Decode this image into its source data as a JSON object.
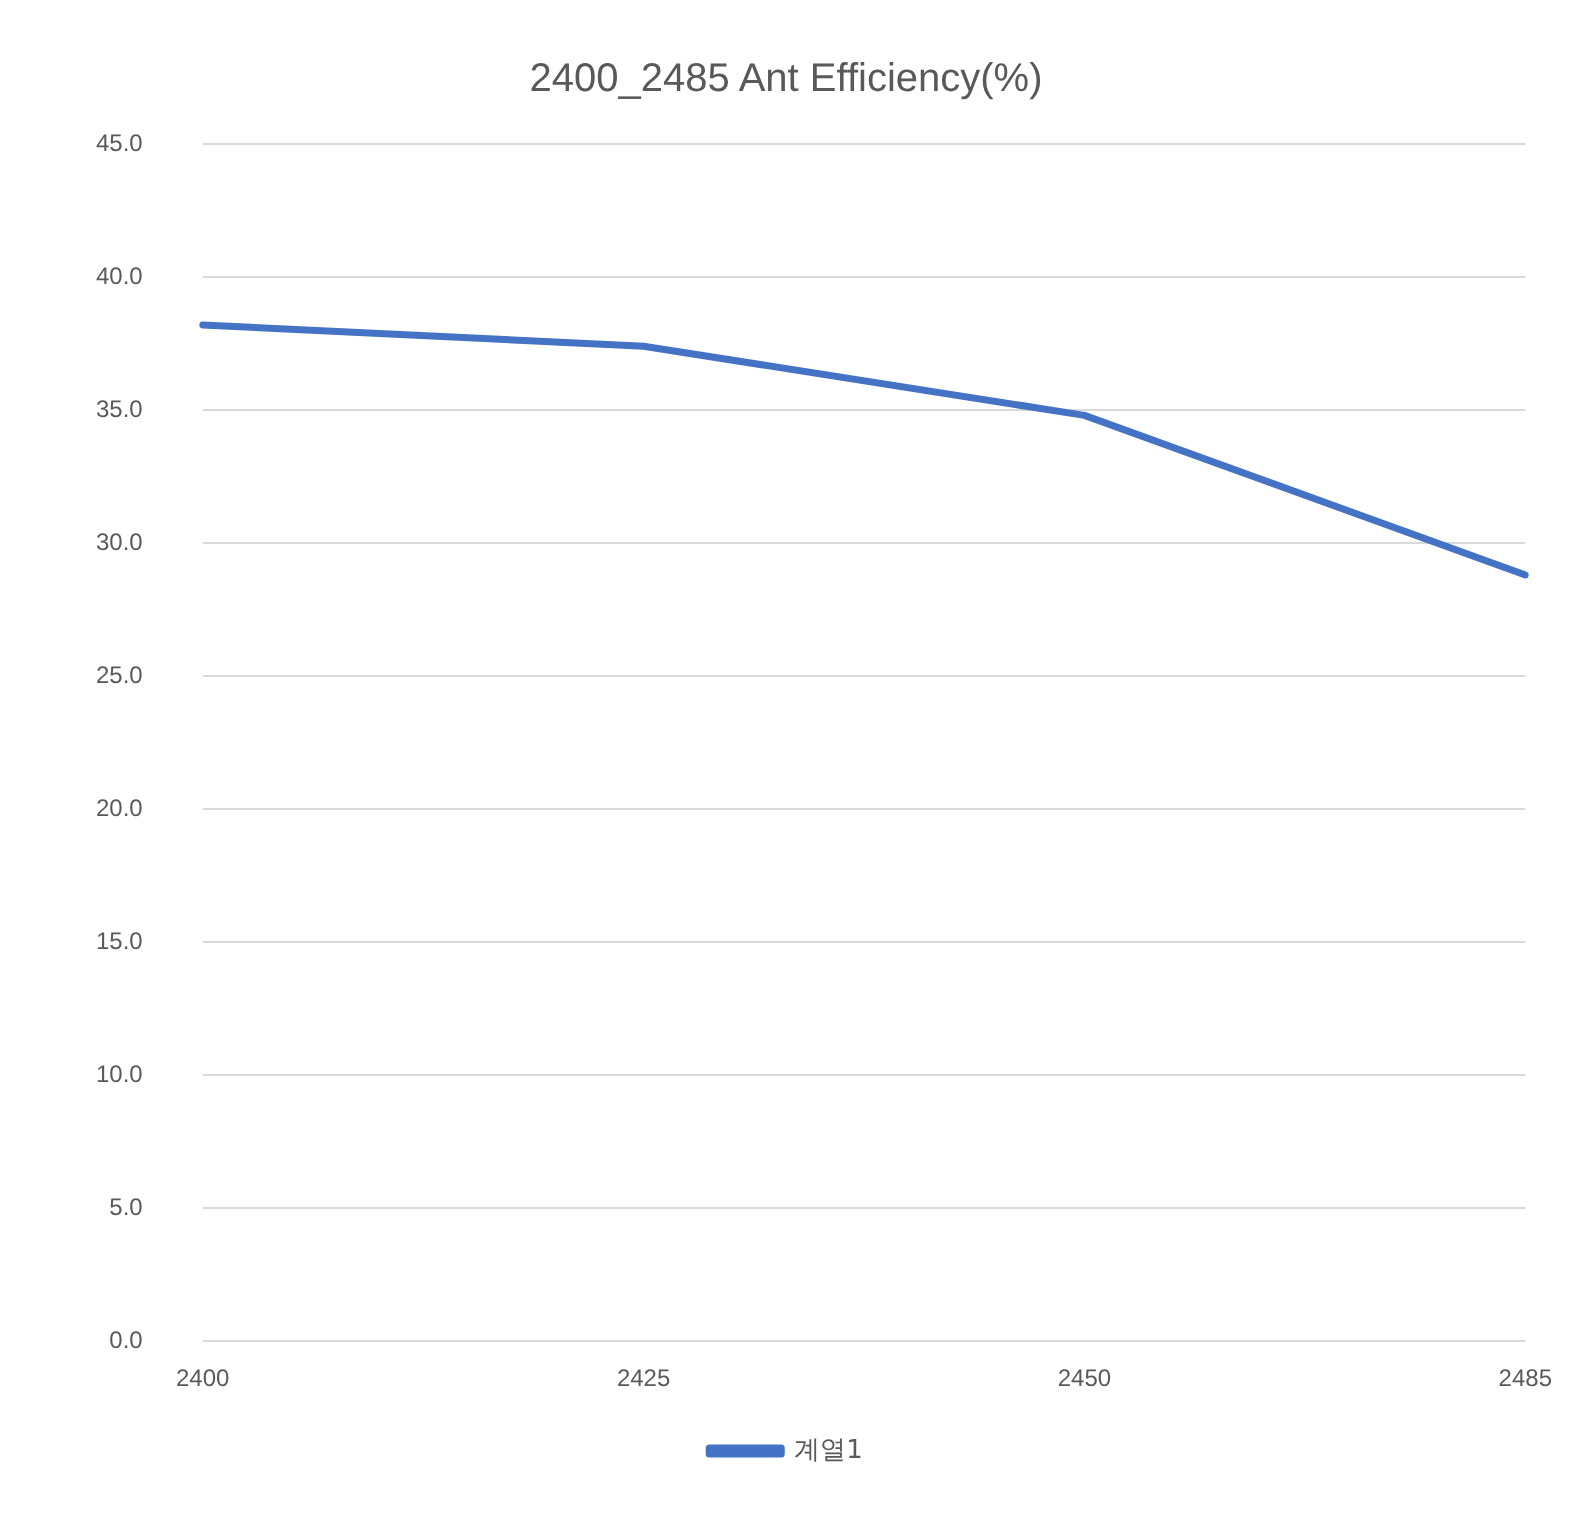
{
  "chart_data": {
    "type": "line",
    "title": "2400_2485 Ant Efficiency(%)",
    "categories": [
      "2400",
      "2425",
      "2450",
      "2485"
    ],
    "series": [
      {
        "name": "계열1",
        "color": "#4472c4",
        "values": [
          38.2,
          37.4,
          34.8,
          28.8
        ]
      }
    ],
    "ylim": [
      0,
      45
    ],
    "yticks": [
      {
        "value": 0,
        "label": "0.0"
      },
      {
        "value": 5,
        "label": "5.0"
      },
      {
        "value": 10,
        "label": "10.0"
      },
      {
        "value": 15,
        "label": "15.0"
      },
      {
        "value": 20,
        "label": "20.0"
      },
      {
        "value": 25,
        "label": "25.0"
      },
      {
        "value": 30,
        "label": "30.0"
      },
      {
        "value": 35,
        "label": "35.0"
      },
      {
        "value": 40,
        "label": "40.0"
      },
      {
        "value": 45,
        "label": "45.0"
      }
    ],
    "grid": "y",
    "legend": "bottom",
    "marker": "none",
    "line_style": "solid"
  }
}
